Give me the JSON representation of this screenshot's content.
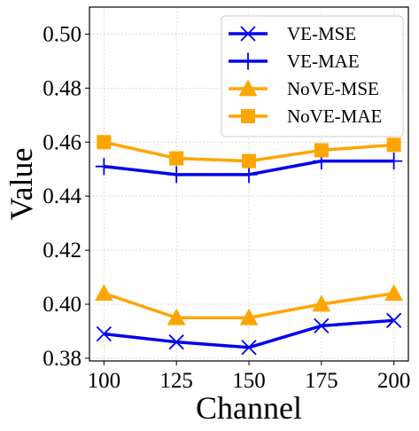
{
  "chart_data": {
    "type": "line",
    "title": "",
    "xlabel": "Channel",
    "ylabel": "Value",
    "x": [
      100,
      125,
      150,
      175,
      200
    ],
    "x_ticks": [
      "100",
      "125",
      "150",
      "175",
      "200"
    ],
    "y_ticks": [
      "0.38",
      "0.40",
      "0.42",
      "0.44",
      "0.46",
      "0.48",
      "0.50"
    ],
    "y_tick_values": [
      0.38,
      0.4,
      0.42,
      0.44,
      0.46,
      0.48,
      0.5
    ],
    "xlim": [
      95,
      205
    ],
    "ylim": [
      0.379,
      0.51
    ],
    "grid": true,
    "legend_position": "top-right",
    "series": [
      {
        "name": "VE-MSE",
        "values": [
          0.389,
          0.386,
          0.384,
          0.392,
          0.394
        ],
        "color": "#0000ee",
        "marker": "x-icon"
      },
      {
        "name": "VE-MAE",
        "values": [
          0.451,
          0.448,
          0.448,
          0.453,
          0.453
        ],
        "color": "#0000ee",
        "marker": "plus-icon"
      },
      {
        "name": "NoVE-MSE",
        "values": [
          0.404,
          0.395,
          0.395,
          0.4,
          0.404
        ],
        "color": "#ffa500",
        "marker": "triangle-icon"
      },
      {
        "name": "NoVE-MAE",
        "values": [
          0.46,
          0.454,
          0.453,
          0.457,
          0.459
        ],
        "color": "#ffa500",
        "marker": "square-icon"
      }
    ]
  }
}
